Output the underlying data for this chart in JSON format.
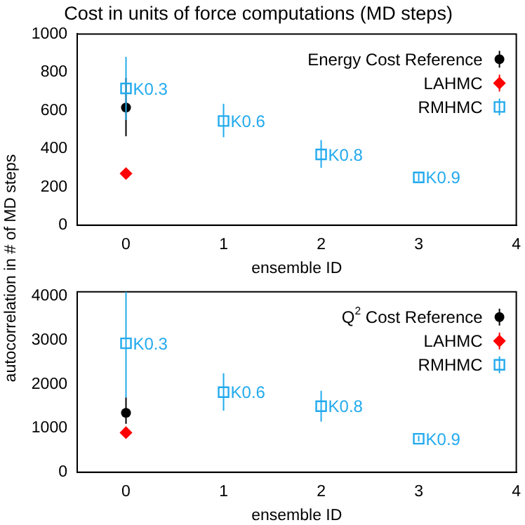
{
  "chart_data": [
    {
      "type": "scatter",
      "title": "Cost in units of force computations (MD steps)",
      "xlabel": "ensemble ID",
      "ylabel": "autocorrelation in # of MD steps",
      "xlim": [
        -0.5,
        4
      ],
      "xticks": [
        0,
        1,
        2,
        3,
        4
      ],
      "ylim": [
        0,
        1000
      ],
      "yticks": [
        0,
        200,
        400,
        600,
        800,
        1000
      ],
      "grid": false,
      "legend": "top right",
      "series": [
        {
          "name": "Energy Cost Reference",
          "color": "#000000",
          "marker": "circle",
          "x": [
            0
          ],
          "values": [
            615
          ],
          "errors": [
            [
              465,
              770
            ]
          ]
        },
        {
          "name": "LAHMC",
          "color": "#ff0000",
          "marker": "diamond",
          "x": [
            0
          ],
          "values": [
            270
          ],
          "errors": [
            [
              255,
              285
            ]
          ]
        },
        {
          "name": "RMHMC",
          "color": "#22aaee",
          "marker": "square",
          "x": [
            0,
            1,
            2,
            3
          ],
          "values": [
            715,
            545,
            370,
            250
          ],
          "errors": [
            [
              550,
              880
            ],
            [
              460,
              635
            ],
            [
              300,
              445
            ],
            [
              230,
              270
            ]
          ]
        }
      ],
      "annotations": [
        {
          "text": "K0.3",
          "x": 0,
          "y": 715
        },
        {
          "text": "K0.6",
          "x": 1,
          "y": 545
        },
        {
          "text": "K0.8",
          "x": 2,
          "y": 370
        },
        {
          "text": "K0.9",
          "x": 3,
          "y": 250
        }
      ]
    },
    {
      "type": "scatter",
      "xlabel": "ensemble ID",
      "xlim": [
        -0.5,
        4
      ],
      "xticks": [
        0,
        1,
        2,
        3,
        4
      ],
      "ylim": [
        0,
        4100
      ],
      "yticks": [
        0,
        1000,
        2000,
        3000,
        4000
      ],
      "grid": false,
      "legend": "top right",
      "series": [
        {
          "name": "Q$^{2}$ Cost Reference",
          "color": "#000000",
          "marker": "circle",
          "x": [
            0
          ],
          "values": [
            1350
          ],
          "errors": [
            [
              1100,
              1700
            ]
          ]
        },
        {
          "name": "LAHMC",
          "color": "#ff0000",
          "marker": "diamond",
          "x": [
            0
          ],
          "values": [
            900
          ],
          "errors": [
            [
              800,
              1000
            ]
          ]
        },
        {
          "name": "RMHMC",
          "color": "#22aaee",
          "marker": "square",
          "x": [
            0,
            1,
            2,
            3
          ],
          "values": [
            2930,
            1820,
            1500,
            760
          ],
          "errors": [
            [
              1700,
              4100
            ],
            [
              1400,
              2250
            ],
            [
              1150,
              1850
            ],
            [
              700,
              830
            ]
          ]
        }
      ],
      "annotations": [
        {
          "text": "K0.3",
          "x": 0,
          "y": 2930
        },
        {
          "text": "K0.6",
          "x": 1,
          "y": 1820
        },
        {
          "text": "K0.8",
          "x": 2,
          "y": 1500
        },
        {
          "text": "K0.9",
          "x": 3,
          "y": 760
        }
      ]
    }
  ]
}
